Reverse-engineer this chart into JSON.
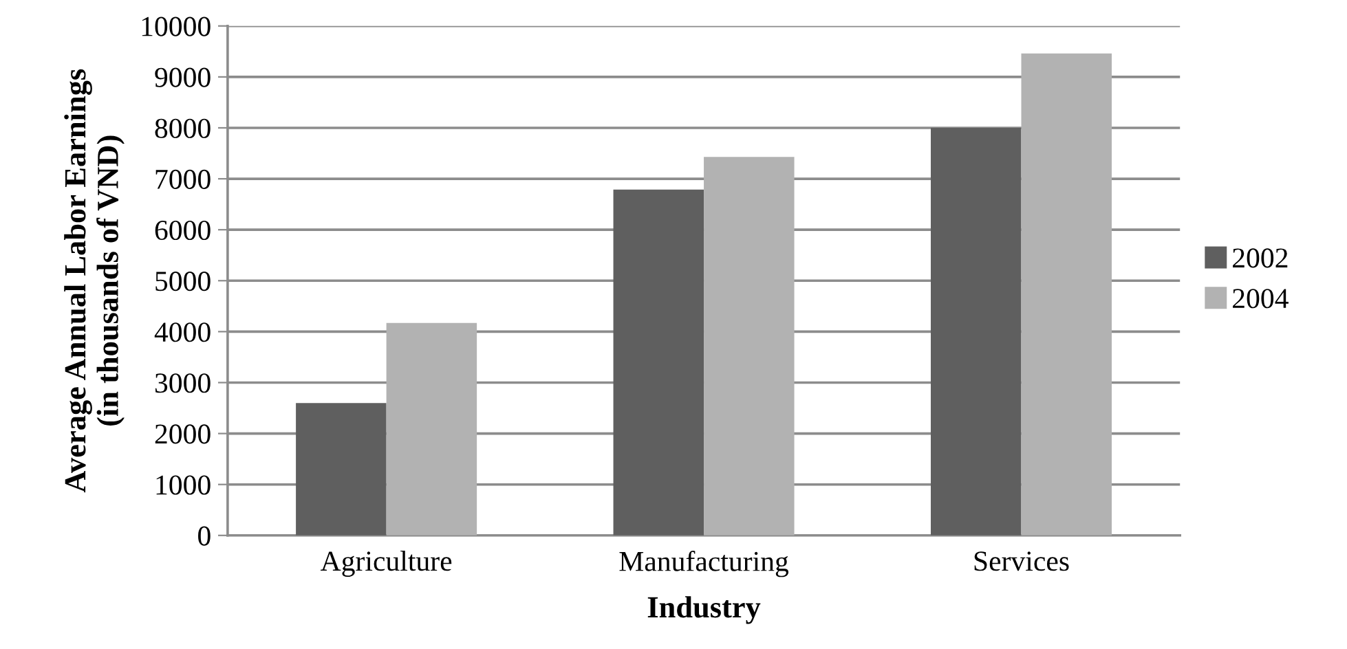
{
  "chart_data": {
    "type": "bar",
    "xlabel": "Industry",
    "ylabel": "Average Annual Labor Earnings\n(in thousands of VND)",
    "categories": [
      "Agriculture",
      "Manufacturing",
      "Services"
    ],
    "series": [
      {
        "name": "2002",
        "color": "#5f5f5f",
        "values": [
          2600,
          6790,
          8000
        ]
      },
      {
        "name": "2004",
        "color": "#b2b2b2",
        "values": [
          4170,
          7430,
          9460
        ]
      }
    ],
    "ylim": [
      0,
      10000
    ],
    "yticks": [
      0,
      1000,
      2000,
      3000,
      4000,
      5000,
      6000,
      7000,
      8000,
      9000,
      10000
    ],
    "grid": "y",
    "legend": "right"
  }
}
